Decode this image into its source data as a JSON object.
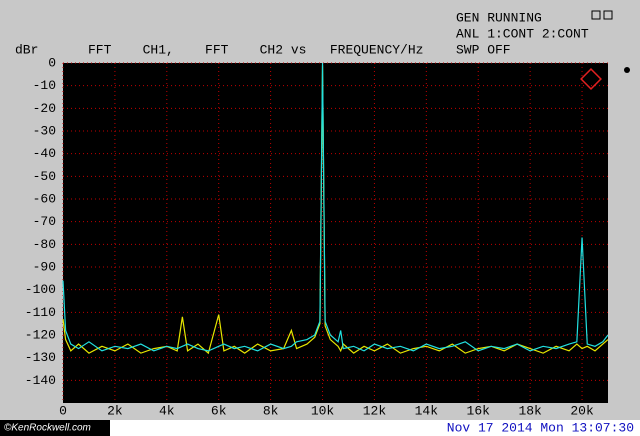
{
  "screen": {
    "status": [
      "GEN RUNNING",
      "ANL 1:CONT 2:CONT",
      "SWP OFF"
    ],
    "credit": "©KenRockwell.com",
    "timestamp": "Nov 17 2014 Mon 13:07:30"
  },
  "chart_data": {
    "type": "line",
    "title": "FFT    CH1,    FFT    CH2 vs   FREQUENCY/Hz",
    "y_label": "dBr",
    "x": [
      0,
      100,
      300,
      600,
      1000,
      1500,
      2000,
      2500,
      3000,
      3500,
      4000,
      4400,
      4600,
      4800,
      5200,
      5600,
      6000,
      6200,
      6600,
      7000,
      7500,
      8000,
      8500,
      8800,
      9000,
      9400,
      9700,
      9900,
      10000,
      10100,
      10300,
      10600,
      10700,
      10800,
      11200,
      11600,
      12000,
      12500,
      13000,
      13500,
      14000,
      14500,
      15000,
      15500,
      16000,
      16500,
      17000,
      17500,
      18000,
      18500,
      19000,
      19500,
      19800,
      20000,
      20200,
      20500,
      20800,
      21000
    ],
    "series": [
      {
        "color": "#e6e600",
        "values": [
          -113,
          -122,
          -127,
          -124,
          -128,
          -125,
          -127,
          -124,
          -128,
          -126,
          -125,
          -127,
          -112,
          -127,
          -124,
          -128,
          -111,
          -127,
          -125,
          -128,
          -124,
          -127,
          -126,
          -118,
          -126,
          -124,
          -121,
          -115,
          -1,
          -116,
          -122,
          -125,
          -127,
          -124,
          -128,
          -125,
          -127,
          -124,
          -128,
          -126,
          -125,
          -127,
          -124,
          -128,
          -126,
          -125,
          -127,
          -124,
          -126,
          -128,
          -125,
          -127,
          -124,
          -126,
          -125,
          -127,
          -124,
          -122
        ]
      },
      {
        "color": "#22e0e0",
        "values": [
          -96,
          -118,
          -124,
          -126,
          -123,
          -127,
          -125,
          -126,
          -124,
          -127,
          -125,
          -126,
          -125,
          -124,
          -126,
          -127,
          -125,
          -124,
          -126,
          -125,
          -127,
          -124,
          -126,
          -125,
          -123,
          -122,
          -120,
          -114,
          0,
          -114,
          -120,
          -123,
          -118,
          -126,
          -125,
          -127,
          -124,
          -126,
          -125,
          -127,
          -124,
          -126,
          -125,
          -123,
          -127,
          -125,
          -126,
          -124,
          -127,
          -125,
          -126,
          -124,
          -123,
          -77,
          -124,
          -125,
          -123,
          -120
        ]
      }
    ],
    "xlim": [
      0,
      21000
    ],
    "xticks": [
      0,
      {
        "value": 2000,
        "label": "2k"
      },
      {
        "value": 4000,
        "label": "4k"
      },
      {
        "value": 6000,
        "label": "6k"
      },
      {
        "value": 8000,
        "label": "8k"
      },
      {
        "value": 10000,
        "label": "10k"
      },
      {
        "value": 12000,
        "label": "12k"
      },
      {
        "value": 14000,
        "label": "14k"
      },
      {
        "value": 16000,
        "label": "16k"
      },
      {
        "value": 18000,
        "label": "18k"
      },
      {
        "value": 20000,
        "label": "20k"
      }
    ],
    "ylim": [
      -150,
      0
    ],
    "yticks": [
      0,
      -10,
      -20,
      -30,
      -40,
      -50,
      -60,
      -70,
      -80,
      -90,
      -100,
      -110,
      -120,
      -130,
      -140
    ],
    "grid": true
  }
}
